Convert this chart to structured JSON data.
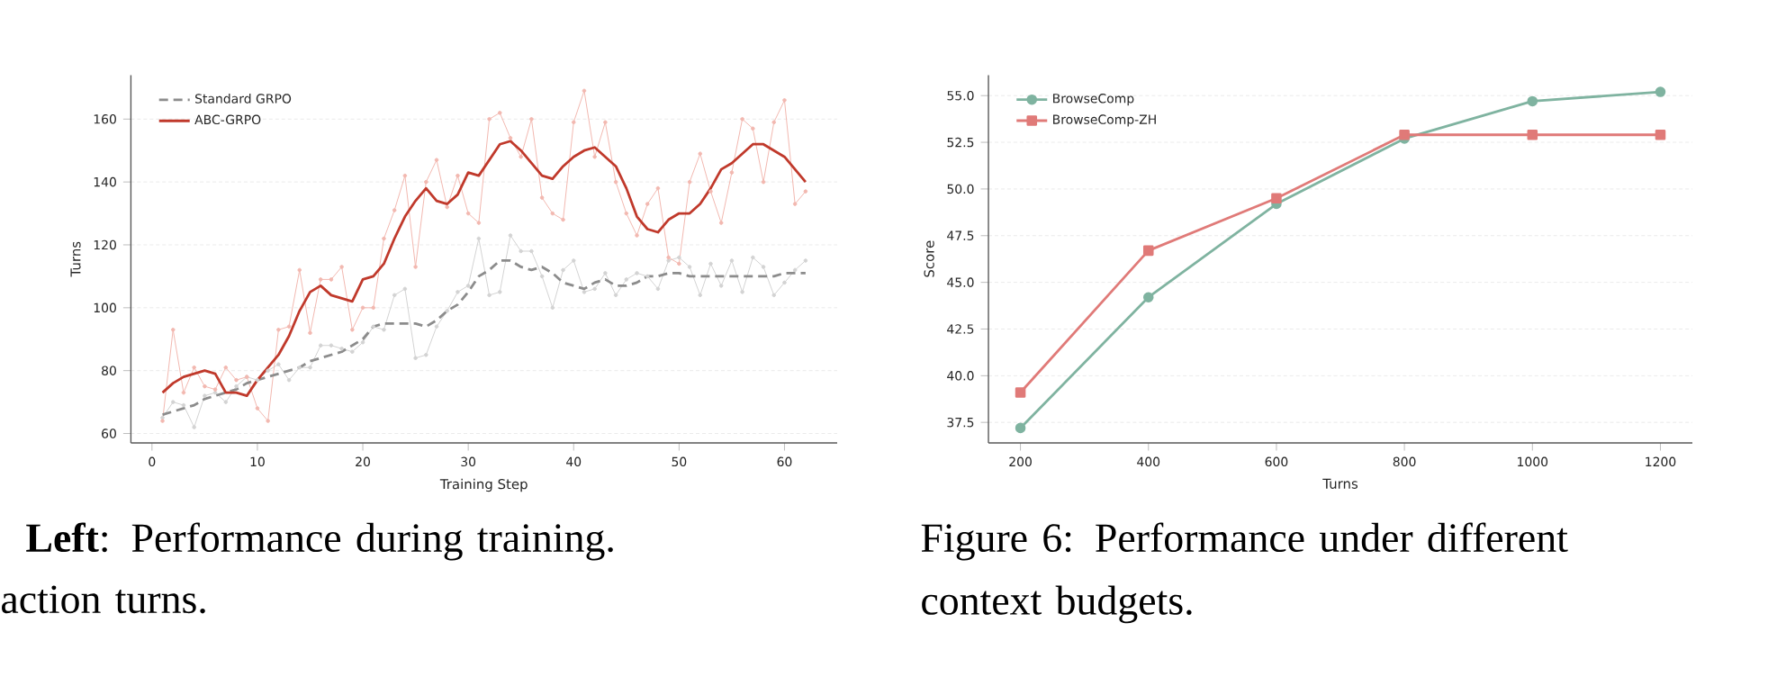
{
  "chart_data": [
    {
      "type": "line",
      "xlabel": "Training Step",
      "ylabel": "Turns",
      "x": [
        1,
        2,
        3,
        4,
        5,
        6,
        7,
        8,
        9,
        10,
        11,
        12,
        13,
        14,
        15,
        16,
        17,
        18,
        19,
        20,
        21,
        22,
        23,
        24,
        25,
        26,
        27,
        28,
        29,
        30,
        31,
        32,
        33,
        34,
        35,
        36,
        37,
        38,
        39,
        40,
        41,
        42,
        43,
        44,
        45,
        46,
        47,
        48,
        49,
        50,
        51,
        52,
        53,
        54,
        55,
        56,
        57,
        58,
        59,
        60,
        61,
        62
      ],
      "series": [
        {
          "color": "#d3d3d3",
          "marker": "circle",
          "values": [
            65,
            70,
            69,
            62,
            72,
            73,
            70,
            75,
            78,
            77,
            80,
            82,
            77,
            81,
            81,
            88,
            88,
            87,
            86,
            89,
            94,
            93,
            104,
            106,
            84,
            85,
            94,
            99,
            105,
            107,
            122,
            104,
            105,
            123,
            118,
            118,
            110,
            100,
            112,
            115,
            105,
            106,
            111,
            104,
            109,
            111,
            110,
            106,
            115,
            116,
            113,
            104,
            114,
            107,
            115,
            105,
            116,
            113,
            104,
            108,
            112,
            115
          ]
        },
        {
          "color": "#f2b8b0",
          "marker": "circle",
          "values": [
            64,
            93,
            73,
            81,
            75,
            74,
            81,
            77,
            78,
            68,
            64,
            93,
            94,
            112,
            92,
            109,
            109,
            113,
            93,
            100,
            100,
            122,
            131,
            142,
            113,
            140,
            147,
            132,
            142,
            130,
            127,
            160,
            162,
            154,
            148,
            160,
            135,
            130,
            128,
            159,
            169,
            148,
            159,
            140,
            130,
            123,
            133,
            138,
            116,
            114,
            140,
            149,
            137,
            127,
            143,
            160,
            157,
            140,
            159,
            166,
            133,
            137
          ]
        },
        {
          "name": "Standard GRPO",
          "color": "#8c8c8c",
          "line_style": "dashed",
          "values": [
            66,
            67,
            68,
            69,
            71,
            72,
            73,
            74,
            76,
            77,
            78,
            79,
            80,
            81,
            83,
            84,
            85,
            86,
            88,
            90,
            94,
            95,
            95,
            95,
            95,
            94,
            96,
            99,
            101,
            105,
            110,
            112,
            115,
            115,
            113,
            112,
            113,
            111,
            108,
            107,
            106,
            108,
            109,
            107,
            107,
            108,
            110,
            110,
            111,
            111,
            110,
            110,
            110,
            110,
            110,
            110,
            110,
            110,
            110,
            111,
            111,
            111
          ]
        },
        {
          "name": "ABC-GRPO",
          "color": "#c0392b",
          "values": [
            73,
            76,
            78,
            79,
            80,
            79,
            73,
            73,
            72,
            77,
            81,
            85,
            91,
            99,
            105,
            107,
            104,
            103,
            102,
            109,
            110,
            114,
            122,
            129,
            134,
            138,
            134,
            133,
            136,
            143,
            142,
            147,
            152,
            153,
            150,
            146,
            142,
            141,
            145,
            148,
            150,
            151,
            148,
            145,
            138,
            129,
            125,
            124,
            128,
            130,
            130,
            133,
            138,
            144,
            146,
            149,
            152,
            152,
            150,
            148,
            144,
            140
          ]
        }
      ],
      "xlim": [
        -2,
        65
      ],
      "ylim": [
        57,
        174
      ],
      "xticks": [
        0,
        10,
        20,
        30,
        40,
        50,
        60
      ],
      "yticks": [
        60,
        80,
        100,
        120,
        140,
        160
      ],
      "grid": "y",
      "legend": "top left",
      "line_style": "solid",
      "marker": "none",
      "annotations": [
        "**Left**: Performance during training.",
        "action turns."
      ]
    },
    {
      "type": "line",
      "xlabel": "Turns",
      "ylabel": "Score",
      "x": [
        200,
        400,
        600,
        800,
        1000,
        1200
      ],
      "series": [
        {
          "name": "BrowseComp",
          "color": "#7fb3a0",
          "marker": "circle",
          "values": [
            37.2,
            44.2,
            49.2,
            52.7,
            54.7,
            55.2
          ]
        },
        {
          "name": "BrowseComp-ZH",
          "color": "#e07a78",
          "marker": "square",
          "values": [
            39.1,
            46.7,
            49.5,
            52.9,
            52.9,
            52.9
          ]
        }
      ],
      "xlim": [
        150,
        1250
      ],
      "ylim": [
        36.4,
        56.1
      ],
      "xticks": [
        200,
        400,
        600,
        800,
        1000,
        1200
      ],
      "yticks": [
        37.5,
        {
          "value": 40,
          "label": "40.0"
        },
        42.5,
        {
          "value": 45,
          "label": "45.0"
        },
        47.5,
        {
          "value": 50,
          "label": "50.0"
        },
        52.5,
        {
          "value": 55,
          "label": "55.0"
        }
      ],
      "grid": "y",
      "legend": "top left",
      "line_style": "solid",
      "annotations": [
        "Figure 6: Performance under different context budgets."
      ]
    }
  ]
}
